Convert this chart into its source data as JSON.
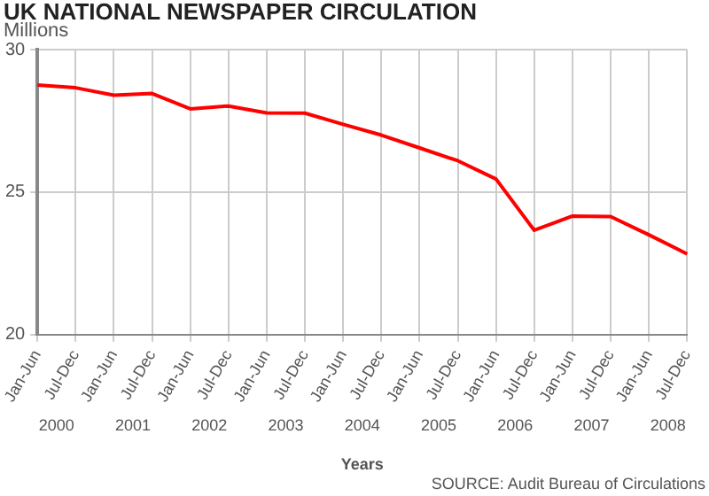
{
  "chart_data": {
    "type": "line",
    "title": "UK NATIONAL NEWSPAPER CIRCULATION",
    "ylabel": "Millions",
    "xlabel": "Years",
    "categories": [
      "Jan-Jun",
      "Jul-Dec",
      "Jan-Jun",
      "Jul-Dec",
      "Jan-Jun",
      "Jul-Dec",
      "Jan-Jun",
      "Jul-Dec",
      "Jan-Jun",
      "Jul-Dec",
      "Jan-Jun",
      "Jul-Dec",
      "Jan-Jun",
      "Jul-Dec",
      "Jan-Jun",
      "Jul-Dec",
      "Jan-Jun",
      "Jul-Dec"
    ],
    "series": [
      {
        "color": "#ff0000",
        "values": [
          28.76,
          28.66,
          28.4,
          28.46,
          27.92,
          28.02,
          27.78,
          27.77,
          27.38,
          27.0,
          26.55,
          26.1,
          25.46,
          23.66,
          24.16,
          24.14,
          23.5,
          22.83
        ]
      }
    ],
    "annotations": [
      "2000",
      "2001",
      "2002",
      "2003",
      "2004",
      "2005",
      "2006",
      "2007",
      "2008",
      "SOURCE: Audit Bureau of Circulations"
    ],
    "ylim": [
      20,
      30
    ],
    "yticks": [
      20,
      25,
      30
    ],
    "grid": true,
    "legend": false,
    "marker": "none",
    "line_style": "solid"
  }
}
